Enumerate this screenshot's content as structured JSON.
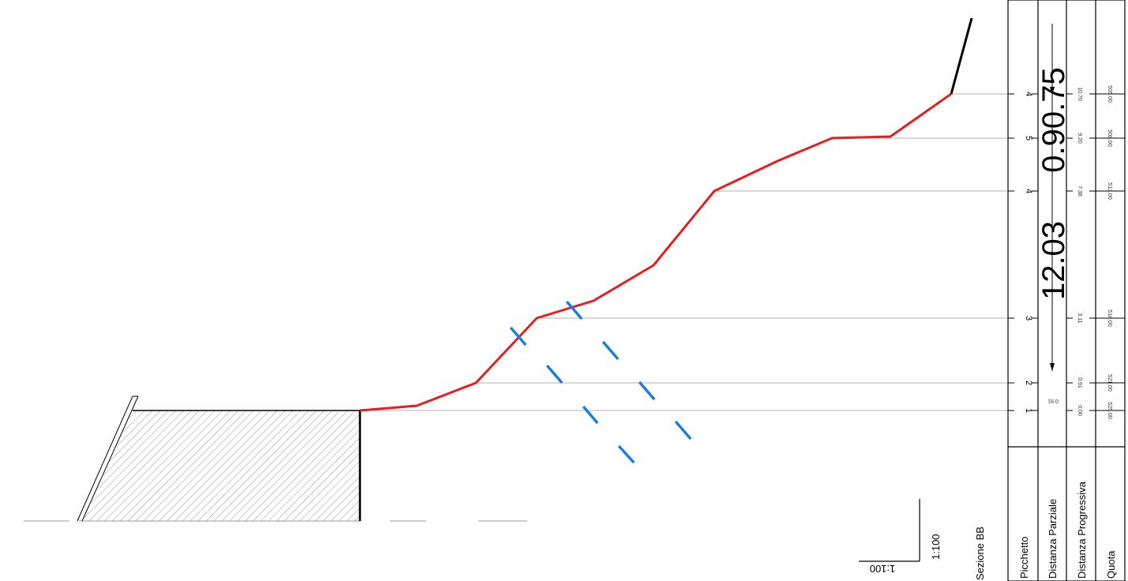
{
  "section_title": "Sezione BB",
  "scale_label": "1:100",
  "scale_label_mirrored": "1:100",
  "colors": {
    "terrain_profile": "#e31e1e",
    "blue_dashes": "#1a7fe0",
    "ink": "#000000",
    "hatch": "#7a7a7a"
  },
  "table": {
    "row_labels": [
      "Picchetto",
      "Distanza Parziale",
      "Distanza Progressiva",
      "Quota"
    ],
    "big_values": [
      "0.90.75",
      "12.03"
    ],
    "partial_distance_first": "0.91",
    "stations": [
      {
        "picket": "1",
        "distanza_progressiva": "0.00",
        "quota": "525.00"
      },
      {
        "picket": "2",
        "distanza_progressiva": "0.91",
        "quota": "521.00"
      },
      {
        "picket": "3",
        "distanza_progressiva": "3.11",
        "quota": "518.00"
      },
      {
        "picket": "4",
        "distanza_progressiva": "7.38",
        "quota": "513.00"
      },
      {
        "picket": "5",
        "distanza_progressiva": "9.20",
        "quota": "508.00"
      },
      {
        "picket": "4",
        "distanza_progressiva": "10.70",
        "quota": "505.00"
      }
    ]
  }
}
